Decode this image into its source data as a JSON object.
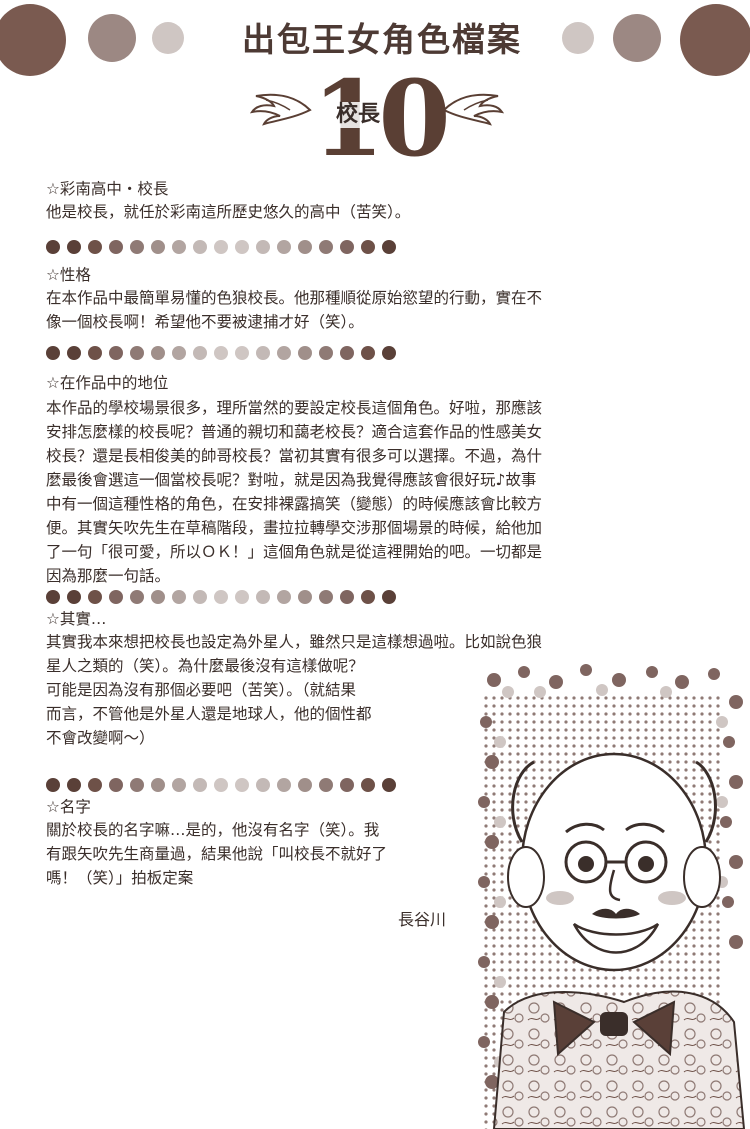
{
  "header": {
    "title": "出包王女角色檔案",
    "number": "10",
    "role": "校長"
  },
  "colors": {
    "dark_dot": "#6e5148",
    "mid_dot": "#9a8680",
    "light_dot": "#cfc6c3",
    "text": "#3a2e2a"
  },
  "sections": [
    {
      "heading": "☆彩南高中・校長",
      "body": "他是校長，就任於彩南這所歷史悠久的高中（苦笑）。"
    },
    {
      "heading": "☆性格",
      "body": "在本作品中最簡單易懂的色狼校長。他那種順從原始慾望的行動，實在不\n像一個校長啊！希望他不要被逮捕才好（笑）。"
    },
    {
      "heading": "☆在作品中的地位",
      "body": "本作品的學校場景很多，理所當然的要設定校長這個角色。好啦，那應該\n安排怎麼樣的校長呢？普通的親切和藹老校長？適合這套作品的性感美女\n校長？還是長相俊美的帥哥校長？當初其實有很多可以選擇。不過，為什\n麼最後會選這一個當校長呢？對啦，就是因為我覺得應該會很好玩♪故事\n中有一個這種性格的角色，在安排裸露搞笑（變態）的時候應該會比較方\n便。其實矢吹先生在草稿階段，畫拉拉轉學交涉那個場景的時候，給他加\n了一句「很可愛，所以ＯＫ！」這個角色就是從這裡開始的吧。一切都是\n因為那麼一句話。"
    },
    {
      "heading": "☆其實…",
      "body": "其實我本來想把校長也設定為外星人，雖然只是這樣想過啦。比如說色狼\n星人之類的（笑）。為什麼最後沒有這樣做呢？\n可能是因為沒有那個必要吧（苦笑）。（就結果\n而言，不管他是外星人還是地球人，他的個性都\n不會改變啊〜）"
    },
    {
      "heading": "☆名字",
      "body": "關於校長的名字嘛…是的，他沒有名字（笑）。我\n有跟矢吹先生商量過，結果他說「叫校長不就好了\n嗎！（笑）」拍板定案"
    }
  ],
  "signature": "長谷川"
}
